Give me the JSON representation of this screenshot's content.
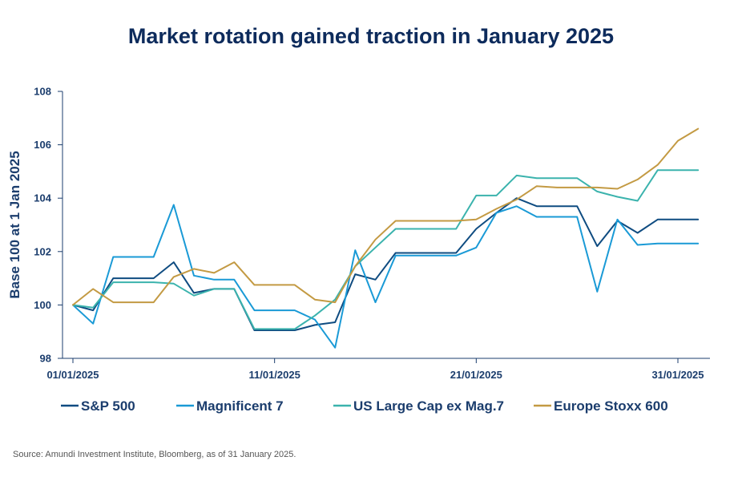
{
  "chart_data": {
    "type": "line",
    "title": "Market rotation gained traction in January 2025",
    "ylabel": "Base 100 at 1 Jan 2025",
    "xlabel": "",
    "ylim": [
      98,
      108
    ],
    "yticks": [
      98,
      100,
      102,
      104,
      106,
      108
    ],
    "x_ticks": [
      {
        "day": 1,
        "label": "01/01/2025"
      },
      {
        "day": 11,
        "label": "11/01/2025"
      },
      {
        "day": 21,
        "label": "21/01/2025"
      },
      {
        "day": 31,
        "label": "31/01/2025"
      }
    ],
    "x": [
      1,
      2,
      3,
      4,
      5,
      6,
      7,
      8,
      9,
      10,
      11,
      12,
      13,
      14,
      15,
      16,
      17,
      18,
      19,
      20,
      21,
      22,
      23,
      24,
      25,
      26,
      27,
      28,
      29,
      30,
      31,
      32
    ],
    "series": [
      {
        "name": "S&P 500",
        "color": "#0f4c81",
        "values": [
          100.0,
          99.8,
          101.0,
          101.0,
          101.0,
          101.6,
          100.45,
          100.6,
          100.6,
          99.05,
          99.05,
          99.05,
          99.25,
          99.35,
          101.15,
          100.95,
          101.95,
          101.95,
          101.95,
          101.95,
          102.85,
          103.45,
          104.0,
          103.7,
          103.7,
          103.7,
          102.2,
          103.15,
          102.7,
          103.2,
          103.2,
          103.2
        ]
      },
      {
        "name": "Magnificent 7",
        "color": "#1a9ad6",
        "values": [
          100.0,
          99.3,
          101.8,
          101.8,
          101.8,
          103.75,
          101.1,
          100.95,
          100.95,
          99.8,
          99.8,
          99.8,
          99.45,
          98.4,
          102.05,
          100.1,
          101.85,
          101.85,
          101.85,
          101.85,
          102.15,
          103.45,
          103.7,
          103.3,
          103.3,
          103.3,
          100.5,
          103.2,
          102.25,
          102.3,
          102.3,
          102.3
        ]
      },
      {
        "name": "US Large Cap ex Mag.7",
        "color": "#3bb3ad",
        "values": [
          100.0,
          99.9,
          100.85,
          100.85,
          100.85,
          100.8,
          100.35,
          100.6,
          100.6,
          99.1,
          99.1,
          99.1,
          99.6,
          100.2,
          101.45,
          102.15,
          102.85,
          102.85,
          102.85,
          102.85,
          104.1,
          104.1,
          104.85,
          104.75,
          104.75,
          104.75,
          104.25,
          104.05,
          103.9,
          105.05,
          105.05,
          105.05
        ]
      },
      {
        "name": "Europe Stoxx 600",
        "color": "#c39a43",
        "values": [
          100.0,
          100.6,
          100.1,
          100.1,
          100.1,
          101.05,
          101.35,
          101.2,
          101.6,
          100.75,
          100.75,
          100.75,
          100.2,
          100.1,
          101.45,
          102.45,
          103.15,
          103.15,
          103.15,
          103.15,
          103.2,
          103.6,
          103.95,
          104.45,
          104.4,
          104.4,
          104.4,
          104.35,
          104.7,
          105.25,
          106.15,
          106.6
        ]
      }
    ]
  },
  "source": "Source: Amundi Investment Institute, Bloomberg, as of 31 January 2025."
}
